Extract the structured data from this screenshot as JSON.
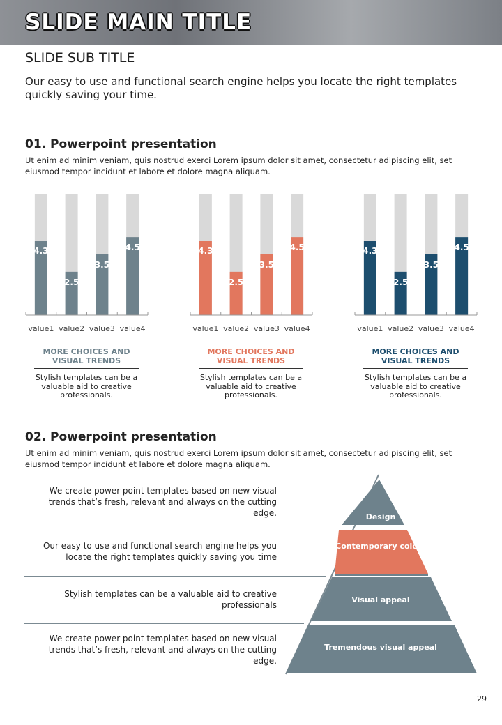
{
  "header": {
    "title": "SLIDE MAIN TITLE",
    "subtitle": "SLIDE SUB TITLE",
    "text": "Our easy to use and functional search engine helps you locate the right templates quickly saving your time."
  },
  "section1": {
    "heading": "01. Powerpoint presentation",
    "text": "Ut enim ad minim veniam, quis nostrud exerci  Lorem ipsum dolor sit amet, consectetur adipiscing elit, set eiusmod tempor incidunt et labore et dolore magna aliquam."
  },
  "chart_data": [
    {
      "type": "bar",
      "categories": [
        "value1",
        "value2",
        "value3",
        "value4"
      ],
      "values": [
        4.3,
        2.5,
        3.5,
        4.5
      ],
      "color": "#6e828c",
      "ylim": [
        0,
        7
      ]
    },
    {
      "type": "bar",
      "categories": [
        "value1",
        "value2",
        "value3",
        "value4"
      ],
      "values": [
        4.3,
        2.5,
        3.5,
        4.5
      ],
      "color": "#e2775e",
      "ylim": [
        0,
        7
      ]
    },
    {
      "type": "bar",
      "categories": [
        "value1",
        "value2",
        "value3",
        "value4"
      ],
      "values": [
        4.3,
        2.5,
        3.5,
        4.5
      ],
      "color": "#1d4e6e",
      "ylim": [
        0,
        7
      ]
    }
  ],
  "captions": [
    {
      "title": "MORE CHOICES AND VISUAL TRENDS",
      "text": "Stylish templates can  be a valuable aid to creative professionals."
    },
    {
      "title": "MORE CHOICES AND VISUAL TRENDS",
      "text": "Stylish templates can be a valuable aid to creative professionals."
    },
    {
      "title": "MORE CHOICES AND VISUAL TRENDS",
      "text": "Stylish templates can be a valuable aid to creative professionals."
    }
  ],
  "section2": {
    "heading": "02. Powerpoint presentation",
    "text": "Ut enim ad minim veniam, quis nostrud exerci  Lorem ipsum dolor sit amet, consectetur adipiscing elit, set eiusmod tempor incidunt et labore et dolore magna aliquam."
  },
  "rows": [
    "We create power point templates based on new visual trends that’s fresh, relevant and always on the cutting edge.",
    "Our easy to use and functional search engine helps you locate the right templates quickly saving you time",
    "Stylish templates can be a valuable aid to creative professionals",
    "We create power point templates based on new visual trends that’s fresh, relevant and always on the cutting edge."
  ],
  "pyramid": [
    "Design",
    "Contemporary colors",
    "Visual appeal",
    "Tremendous visual appeal"
  ],
  "page_number": "29"
}
